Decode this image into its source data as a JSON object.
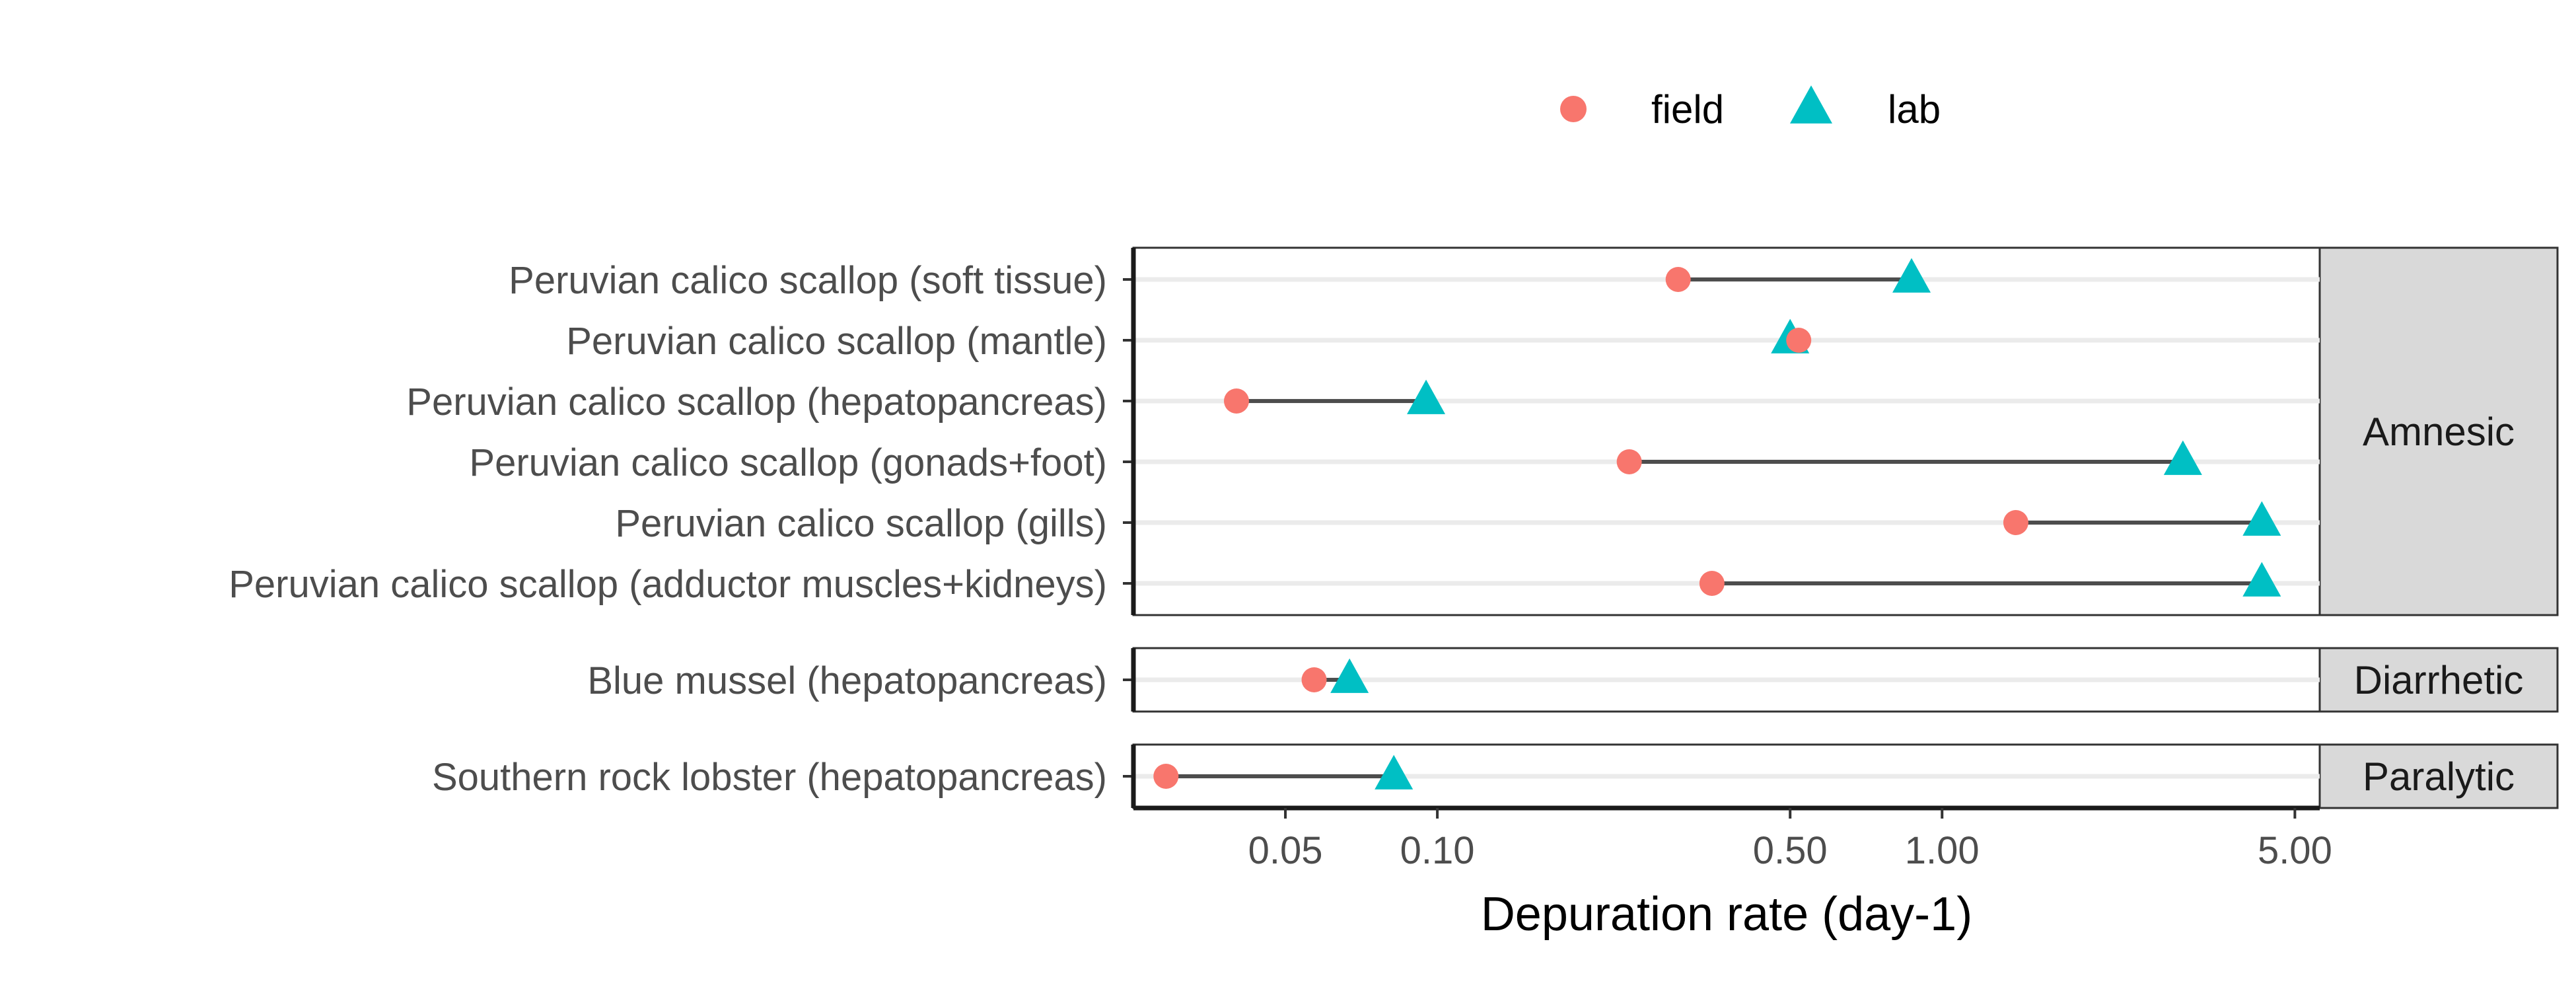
{
  "chart_data": {
    "type": "dot-range",
    "xlabel": "Depuration rate (day-1)",
    "xscale": "log10",
    "xlim": [
      0.025,
      5.6
    ],
    "xticks": [
      {
        "value": 0.05,
        "label": "0.05"
      },
      {
        "value": 0.1,
        "label": "0.10"
      },
      {
        "value": 0.5,
        "label": "0.50"
      },
      {
        "value": 1.0,
        "label": "1.00"
      },
      {
        "value": 5.0,
        "label": "5.00"
      }
    ],
    "legend": {
      "position": "top",
      "entries": [
        {
          "key": "field",
          "label": "field",
          "shape": "circle",
          "color": "#F8766D"
        },
        {
          "key": "lab",
          "label": "lab",
          "shape": "triangle",
          "color": "#00BFC4"
        }
      ]
    },
    "connector_color": "#4d4d4d",
    "grid": "horizontal",
    "panels": [
      {
        "strip": "Amnesic",
        "rows": [
          {
            "label": "Peruvian calico scallop (soft tissue)",
            "field": 0.3,
            "lab": 0.87
          },
          {
            "label": "Peruvian calico scallop (mantle)",
            "field": 0.52,
            "lab": 0.5
          },
          {
            "label": "Peruvian calico scallop (hepatopancreas)",
            "field": 0.04,
            "lab": 0.095
          },
          {
            "label": "Peruvian calico scallop (gonads+foot)",
            "field": 0.24,
            "lab": 3.0
          },
          {
            "label": "Peruvian calico scallop (gills)",
            "field": 1.4,
            "lab": 4.3
          },
          {
            "label": "Peruvian calico scallop (adductor muscles+kidneys)",
            "field": 0.35,
            "lab": 4.3
          }
        ]
      },
      {
        "strip": "Diarrhetic",
        "rows": [
          {
            "label": "Blue mussel (hepatopancreas)",
            "field": 0.057,
            "lab": 0.067
          }
        ]
      },
      {
        "strip": "Paralytic",
        "rows": [
          {
            "label": "Southern rock lobster (hepatopancreas)",
            "field": 0.029,
            "lab": 0.082
          }
        ]
      }
    ]
  }
}
